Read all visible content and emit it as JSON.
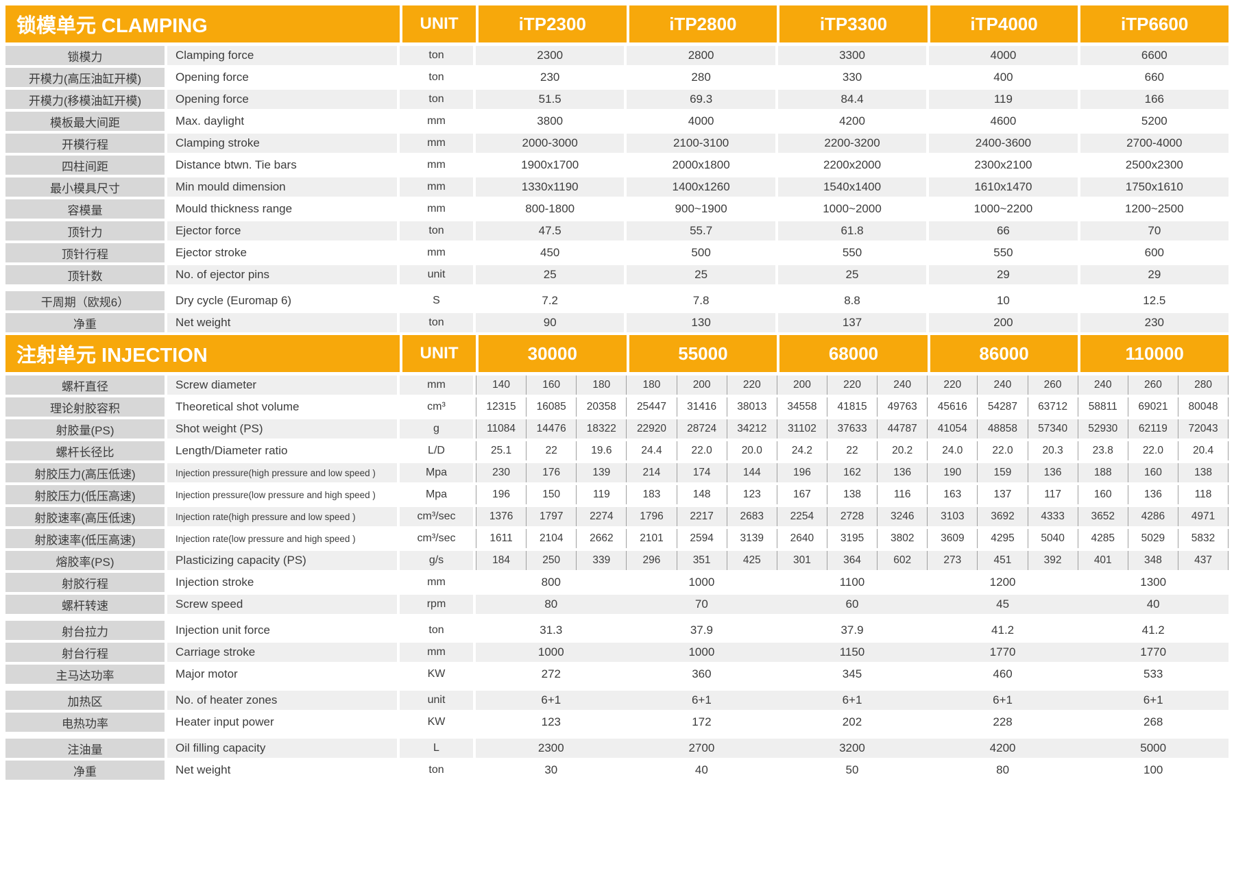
{
  "colors": {
    "accent_orange": "#F7A80B",
    "label_gray": "#D7D7D7",
    "stripe_gray": "#EFEFEF",
    "text": "#3C3C3C",
    "header_text": "#FFFFFF"
  },
  "clamping": {
    "title": "锁模单元 CLAMPING",
    "unit_header": "UNIT",
    "models": [
      "iTP2300",
      "iTP2800",
      "iTP3300",
      "iTP4000",
      "iTP6600"
    ],
    "rows": [
      {
        "cn": "锁模力",
        "en": "Clamping force",
        "unit": "ton",
        "values": [
          "2300",
          "2800",
          "3300",
          "4000",
          "6600"
        ]
      },
      {
        "cn": "开模力(高压油缸开模)",
        "en": "Opening force",
        "unit": "ton",
        "values": [
          "230",
          "280",
          "330",
          "400",
          "660"
        ]
      },
      {
        "cn": "开模力(移模油缸开模)",
        "en": "Opening force",
        "unit": "ton",
        "values": [
          "51.5",
          "69.3",
          "84.4",
          "119",
          "166"
        ]
      },
      {
        "cn": "模板最大间距",
        "en": "Max. daylight",
        "unit": "mm",
        "values": [
          "3800",
          "4000",
          "4200",
          "4600",
          "5200"
        ]
      },
      {
        "cn": "开模行程",
        "en": "Clamping stroke",
        "unit": "mm",
        "values": [
          "2000-3000",
          "2100-3100",
          "2200-3200",
          "2400-3600",
          "2700-4000"
        ]
      },
      {
        "cn": "四柱间距",
        "en": "Distance btwn. Tie bars",
        "unit": "mm",
        "values": [
          "1900x1700",
          "2000x1800",
          "2200x2000",
          "2300x2100",
          "2500x2300"
        ]
      },
      {
        "cn": "最小模具尺寸",
        "en": "Min mould dimension",
        "unit": "mm",
        "values": [
          "1330x1190",
          "1400x1260",
          "1540x1400",
          "1610x1470",
          "1750x1610"
        ]
      },
      {
        "cn": "容模量",
        "en": "Mould thickness range",
        "unit": "mm",
        "values": [
          "800-1800",
          "900~1900",
          "1000~2000",
          "1000~2200",
          "1200~2500"
        ]
      },
      {
        "cn": "顶针力",
        "en": "Ejector force",
        "unit": "ton",
        "values": [
          "47.5",
          "55.7",
          "61.8",
          "66",
          "70"
        ]
      },
      {
        "cn": "顶针行程",
        "en": "Ejector stroke",
        "unit": "mm",
        "values": [
          "450",
          "500",
          "550",
          "550",
          "600"
        ]
      },
      {
        "cn": "顶针数",
        "en": "No. of ejector pins",
        "unit": "unit",
        "values": [
          "25",
          "25",
          "25",
          "29",
          "29"
        ]
      },
      {
        "cn": "干周期（欧规6）",
        "en": "Dry cycle (Euromap 6)",
        "unit": "S",
        "values": [
          "7.2",
          "7.8",
          "8.8",
          "10",
          "12.5"
        ],
        "group_start": true
      },
      {
        "cn": "净重",
        "en": "Net weight",
        "unit": "ton",
        "values": [
          "90",
          "130",
          "137",
          "200",
          "230"
        ]
      }
    ]
  },
  "injection": {
    "title": "注射单元 INJECTION",
    "unit_header": "UNIT",
    "models": [
      "30000",
      "55000",
      "68000",
      "86000",
      "110000"
    ],
    "rows": [
      {
        "cn": "螺杆直径",
        "en": "Screw diameter",
        "unit": "mm",
        "layout": "multi",
        "values": [
          "140",
          "160",
          "180",
          "180",
          "200",
          "220",
          "200",
          "220",
          "240",
          "220",
          "240",
          "260",
          "240",
          "260",
          "280"
        ]
      },
      {
        "cn": "理论射胶容积",
        "en": "Theoretical shot volume",
        "unit": "cm³",
        "layout": "multi",
        "values": [
          "12315",
          "16085",
          "20358",
          "25447",
          "31416",
          "38013",
          "34558",
          "41815",
          "49763",
          "45616",
          "54287",
          "63712",
          "58811",
          "69021",
          "80048"
        ]
      },
      {
        "cn": "射胶量(PS)",
        "en": "Shot weight (PS)",
        "unit": "g",
        "layout": "multi",
        "values": [
          "11084",
          "14476",
          "18322",
          "22920",
          "28724",
          "34212",
          "31102",
          "37633",
          "44787",
          "41054",
          "48858",
          "57340",
          "52930",
          "62119",
          "72043"
        ]
      },
      {
        "cn": "螺杆长径比",
        "en": "Length/Diameter ratio",
        "unit": "L/D",
        "layout": "multi",
        "values": [
          "25.1",
          "22",
          "19.6",
          "24.4",
          "22.0",
          "20.0",
          "24.2",
          "22",
          "20.2",
          "24.0",
          "22.0",
          "20.3",
          "23.8",
          "22.0",
          "20.4"
        ]
      },
      {
        "cn": "射胶压力(高压低速)",
        "en": "Injection pressure(high pressure and low speed )",
        "unit": "Mpa",
        "layout": "multi",
        "values": [
          "230",
          "176",
          "139",
          "214",
          "174",
          "144",
          "196",
          "162",
          "136",
          "190",
          "159",
          "136",
          "188",
          "160",
          "138"
        ]
      },
      {
        "cn": "射胶压力(低压高速)",
        "en": "Injection pressure(low pressure and high speed )",
        "unit": "Mpa",
        "layout": "multi",
        "values": [
          "196",
          "150",
          "119",
          "183",
          "148",
          "123",
          "167",
          "138",
          "116",
          "163",
          "137",
          "117",
          "160",
          "136",
          "118"
        ]
      },
      {
        "cn": "射胶速率(高压低速)",
        "en": "Injection rate(high pressure and low speed )",
        "unit": "cm³/sec",
        "layout": "multi",
        "values": [
          "1376",
          "1797",
          "2274",
          "1796",
          "2217",
          "2683",
          "2254",
          "2728",
          "3246",
          "3103",
          "3692",
          "4333",
          "3652",
          "4286",
          "4971"
        ]
      },
      {
        "cn": "射胶速率(低压高速)",
        "en": "Injection rate(low pressure and high speed )",
        "unit": "cm³/sec",
        "layout": "multi",
        "values": [
          "1611",
          "2104",
          "2662",
          "2101",
          "2594",
          "3139",
          "2640",
          "3195",
          "3802",
          "3609",
          "4295",
          "5040",
          "4285",
          "5029",
          "5832"
        ]
      },
      {
        "cn": "熔胶率(PS)",
        "en": "Plasticizing capacity (PS)",
        "unit": "g/s",
        "layout": "multi",
        "values": [
          "184",
          "250",
          "339",
          "296",
          "351",
          "425",
          "301",
          "364",
          "602",
          "273",
          "451",
          "392",
          "401",
          "348",
          "437"
        ]
      },
      {
        "cn": "射胶行程",
        "en": "Injection stroke",
        "unit": "mm",
        "layout": "flat",
        "values": [
          "800",
          "1000",
          "1100",
          "1200",
          "1300"
        ]
      },
      {
        "cn": "螺杆转速",
        "en": "Screw speed",
        "unit": "rpm",
        "layout": "flat",
        "values": [
          "80",
          "70",
          "60",
          "45",
          "40"
        ]
      },
      {
        "cn": "射台拉力",
        "en": "Injection unit force",
        "unit": "ton",
        "layout": "flat",
        "group_start": true,
        "values": [
          "31.3",
          "37.9",
          "37.9",
          "41.2",
          "41.2"
        ]
      },
      {
        "cn": "射台行程",
        "en": "Carriage stroke",
        "unit": "mm",
        "layout": "flat",
        "values": [
          "1000",
          "1000",
          "1150",
          "1770",
          "1770"
        ]
      },
      {
        "cn": "主马达功率",
        "en": "Major motor",
        "unit": "KW",
        "layout": "flat",
        "values": [
          "272",
          "360",
          "345",
          "460",
          "533"
        ]
      },
      {
        "cn": "加热区",
        "en": "No. of heater zones",
        "unit": "unit",
        "layout": "flat",
        "group_start": true,
        "values": [
          "6+1",
          "6+1",
          "6+1",
          "6+1",
          "6+1"
        ]
      },
      {
        "cn": "电热功率",
        "en": "Heater input power",
        "unit": "KW",
        "layout": "flat",
        "values": [
          "123",
          "172",
          "202",
          "228",
          "268"
        ]
      },
      {
        "cn": "注油量",
        "en": "Oil filling capacity",
        "unit": "L",
        "layout": "flat",
        "group_start": true,
        "values": [
          "2300",
          "2700",
          "3200",
          "4200",
          "5000"
        ]
      },
      {
        "cn": "净重",
        "en": "Net weight",
        "unit": "ton",
        "layout": "flat",
        "values": [
          "30",
          "40",
          "50",
          "80",
          "100"
        ]
      }
    ]
  }
}
